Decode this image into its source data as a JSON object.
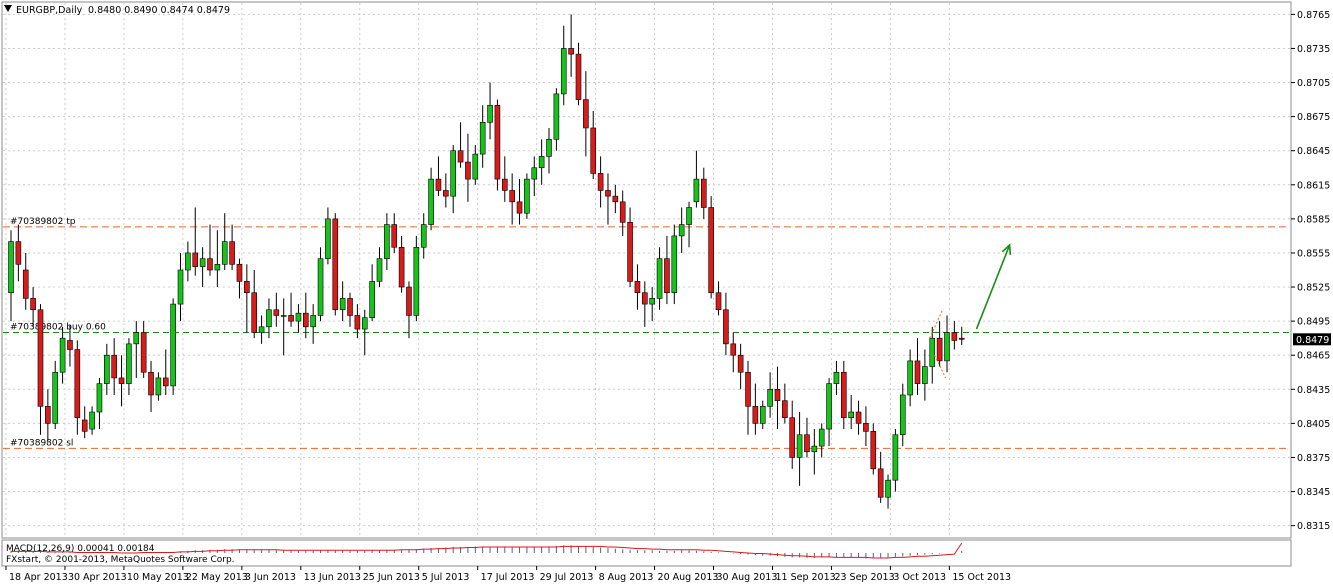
{
  "header": {
    "symbol_text": "EURGBP,Daily",
    "ohlc_text": "0.8480 0.8490 0.8474 0.8479"
  },
  "indicator": {
    "label": "MACD(12,26,9) 0.00041 0.00184"
  },
  "footer": {
    "copyright": "FXstart, © 2001-2013, MetaQuotes Software Corp."
  },
  "colors": {
    "bull": "#17c31a",
    "bear": "#d81b1b",
    "wick": "#000000",
    "level_red": "#f0642a",
    "level_green": "#1a8c1a",
    "arrow": "#1a8c1a",
    "grid": "#c8ccd2",
    "price_tag_bg": "#000000",
    "price_tag_fg": "#ffffff"
  },
  "chart_data": {
    "type": "candlestick",
    "symbol": "EURGBP",
    "timeframe": "Daily",
    "ylim": [
      0.8305,
      0.8775
    ],
    "y_ticks": [
      "0.8765",
      "0.8735",
      "0.8705",
      "0.8675",
      "0.8645",
      "0.8615",
      "0.8585",
      "0.8555",
      "0.8525",
      "0.8495",
      "0.8465",
      "0.8435",
      "0.8405",
      "0.8375",
      "0.8345",
      "0.8315"
    ],
    "current_price": "0.8479",
    "x_tick_labels": [
      {
        "label": "18 Apr 2013",
        "bar": 0
      },
      {
        "label": "30 Apr 2013",
        "bar": 8
      },
      {
        "label": "10 May 2013",
        "bar": 16
      },
      {
        "label": "22 May 2013",
        "bar": 24
      },
      {
        "label": "3 Jun 2013",
        "bar": 32
      },
      {
        "label": "13 Jun 2013",
        "bar": 40
      },
      {
        "label": "25 Jun 2013",
        "bar": 48
      },
      {
        "label": "5 Jul 2013",
        "bar": 56
      },
      {
        "label": "17 Jul 2013",
        "bar": 64
      },
      {
        "label": "29 Jul 2013",
        "bar": 72
      },
      {
        "label": "8 Aug 2013",
        "bar": 80
      },
      {
        "label": "20 Aug 2013",
        "bar": 88
      },
      {
        "label": "30 Aug 2013",
        "bar": 96
      },
      {
        "label": "11 Sep 2013",
        "bar": 104
      },
      {
        "label": "23 Sep 2013",
        "bar": 112
      },
      {
        "label": "3 Oct 2013",
        "bar": 120
      },
      {
        "label": "15 Oct 2013",
        "bar": 128
      }
    ],
    "levels": [
      {
        "label": "#70389802 tp",
        "price": 0.8578,
        "style": "tp"
      },
      {
        "label": "#70389802 buy 0.60",
        "price": 0.8485,
        "style": "buy"
      },
      {
        "label": "#70389802 sl",
        "price": 0.8383,
        "style": "sl"
      }
    ],
    "arrow": {
      "from": {
        "bar": 131,
        "price": 0.8488
      },
      "to": {
        "bar": 135.5,
        "price": 0.8562
      }
    },
    "ohlc": [
      [
        0.852,
        0.8575,
        0.8495,
        0.8565
      ],
      [
        0.8565,
        0.858,
        0.853,
        0.8545
      ],
      [
        0.854,
        0.8555,
        0.8505,
        0.8515
      ],
      [
        0.8515,
        0.8525,
        0.849,
        0.8505
      ],
      [
        0.8505,
        0.851,
        0.8395,
        0.842
      ],
      [
        0.842,
        0.8435,
        0.839,
        0.8405
      ],
      [
        0.8405,
        0.846,
        0.84,
        0.845
      ],
      [
        0.845,
        0.849,
        0.844,
        0.848
      ],
      [
        0.8478,
        0.8492,
        0.8455,
        0.847
      ],
      [
        0.847,
        0.8478,
        0.8395,
        0.841
      ],
      [
        0.8408,
        0.842,
        0.8392,
        0.8398
      ],
      [
        0.84,
        0.842,
        0.8395,
        0.8415
      ],
      [
        0.8415,
        0.8445,
        0.84,
        0.844
      ],
      [
        0.844,
        0.8475,
        0.843,
        0.8465
      ],
      [
        0.8465,
        0.848,
        0.843,
        0.8445
      ],
      [
        0.8445,
        0.8465,
        0.842,
        0.844
      ],
      [
        0.844,
        0.848,
        0.843,
        0.8475
      ],
      [
        0.8475,
        0.8495,
        0.8445,
        0.8485
      ],
      [
        0.8485,
        0.8495,
        0.8445,
        0.845
      ],
      [
        0.845,
        0.846,
        0.8415,
        0.843
      ],
      [
        0.843,
        0.845,
        0.8425,
        0.8445
      ],
      [
        0.8445,
        0.847,
        0.843,
        0.8438
      ],
      [
        0.8438,
        0.8515,
        0.843,
        0.851
      ],
      [
        0.851,
        0.8555,
        0.8495,
        0.854
      ],
      [
        0.854,
        0.8565,
        0.853,
        0.8555
      ],
      [
        0.8555,
        0.8595,
        0.8535,
        0.8543
      ],
      [
        0.8543,
        0.856,
        0.8525,
        0.855
      ],
      [
        0.855,
        0.858,
        0.8535,
        0.854
      ],
      [
        0.854,
        0.8575,
        0.8525,
        0.8545
      ],
      [
        0.8545,
        0.859,
        0.854,
        0.8565
      ],
      [
        0.8565,
        0.858,
        0.854,
        0.8545
      ],
      [
        0.8545,
        0.855,
        0.8515,
        0.853
      ],
      [
        0.853,
        0.8545,
        0.8485,
        0.852
      ],
      [
        0.852,
        0.854,
        0.848,
        0.8485
      ],
      [
        0.8485,
        0.85,
        0.8475,
        0.849
      ],
      [
        0.849,
        0.8515,
        0.848,
        0.8505
      ],
      [
        0.8505,
        0.852,
        0.849,
        0.85
      ],
      [
        0.85,
        0.8515,
        0.8465,
        0.85
      ],
      [
        0.85,
        0.852,
        0.849,
        0.8495
      ],
      [
        0.8495,
        0.851,
        0.8485,
        0.8502
      ],
      [
        0.8502,
        0.852,
        0.848,
        0.849
      ],
      [
        0.849,
        0.851,
        0.8475,
        0.85
      ],
      [
        0.85,
        0.856,
        0.8495,
        0.855
      ],
      [
        0.855,
        0.8595,
        0.8545,
        0.8585
      ],
      [
        0.8585,
        0.859,
        0.85,
        0.8505
      ],
      [
        0.8505,
        0.853,
        0.8495,
        0.8515
      ],
      [
        0.8515,
        0.852,
        0.849,
        0.85
      ],
      [
        0.85,
        0.851,
        0.848,
        0.8488
      ],
      [
        0.8488,
        0.8505,
        0.8465,
        0.8498
      ],
      [
        0.8498,
        0.8545,
        0.8495,
        0.853
      ],
      [
        0.853,
        0.856,
        0.8525,
        0.855
      ],
      [
        0.855,
        0.859,
        0.854,
        0.858
      ],
      [
        0.858,
        0.859,
        0.8555,
        0.856
      ],
      [
        0.856,
        0.857,
        0.852,
        0.8525
      ],
      [
        0.8525,
        0.853,
        0.848,
        0.85
      ],
      [
        0.85,
        0.857,
        0.8495,
        0.856
      ],
      [
        0.856,
        0.859,
        0.855,
        0.858
      ],
      [
        0.858,
        0.863,
        0.8575,
        0.862
      ],
      [
        0.862,
        0.864,
        0.8605,
        0.861
      ],
      [
        0.861,
        0.8625,
        0.8595,
        0.8605
      ],
      [
        0.8605,
        0.865,
        0.859,
        0.8645
      ],
      [
        0.8645,
        0.867,
        0.863,
        0.8635
      ],
      [
        0.8635,
        0.866,
        0.86,
        0.862
      ],
      [
        0.862,
        0.865,
        0.8615,
        0.8642
      ],
      [
        0.8642,
        0.8685,
        0.863,
        0.867
      ],
      [
        0.867,
        0.8705,
        0.8655,
        0.8685
      ],
      [
        0.8685,
        0.869,
        0.861,
        0.862
      ],
      [
        0.862,
        0.864,
        0.86,
        0.861
      ],
      [
        0.861,
        0.8625,
        0.858,
        0.86
      ],
      [
        0.86,
        0.862,
        0.858,
        0.859
      ],
      [
        0.859,
        0.8625,
        0.8585,
        0.862
      ],
      [
        0.862,
        0.864,
        0.8605,
        0.863
      ],
      [
        0.863,
        0.8655,
        0.8615,
        0.864
      ],
      [
        0.864,
        0.8665,
        0.8625,
        0.8655
      ],
      [
        0.8655,
        0.87,
        0.8645,
        0.8695
      ],
      [
        0.8695,
        0.8755,
        0.8685,
        0.8735
      ],
      [
        0.8735,
        0.8765,
        0.871,
        0.873
      ],
      [
        0.873,
        0.874,
        0.8685,
        0.869
      ],
      [
        0.869,
        0.8715,
        0.864,
        0.8665
      ],
      [
        0.8665,
        0.868,
        0.862,
        0.8625
      ],
      [
        0.8625,
        0.864,
        0.8595,
        0.861
      ],
      [
        0.861,
        0.8625,
        0.858,
        0.8605
      ],
      [
        0.8605,
        0.8615,
        0.859,
        0.86
      ],
      [
        0.86,
        0.861,
        0.857,
        0.8582
      ],
      [
        0.8582,
        0.8595,
        0.8525,
        0.853
      ],
      [
        0.853,
        0.8545,
        0.8505,
        0.852
      ],
      [
        0.852,
        0.853,
        0.849,
        0.851
      ],
      [
        0.851,
        0.8525,
        0.8495,
        0.8515
      ],
      [
        0.8515,
        0.856,
        0.8505,
        0.855
      ],
      [
        0.855,
        0.857,
        0.851,
        0.852
      ],
      [
        0.852,
        0.858,
        0.851,
        0.857
      ],
      [
        0.857,
        0.8595,
        0.8555,
        0.858
      ],
      [
        0.858,
        0.86,
        0.856,
        0.8595
      ],
      [
        0.86,
        0.8645,
        0.8595,
        0.862
      ],
      [
        0.862,
        0.863,
        0.8585,
        0.8595
      ],
      [
        0.8595,
        0.8605,
        0.8515,
        0.852
      ],
      [
        0.852,
        0.853,
        0.85,
        0.8505
      ],
      [
        0.8505,
        0.852,
        0.8465,
        0.8475
      ],
      [
        0.8475,
        0.8485,
        0.845,
        0.8465
      ],
      [
        0.8465,
        0.8475,
        0.8435,
        0.845
      ],
      [
        0.845,
        0.846,
        0.8395,
        0.842
      ],
      [
        0.842,
        0.844,
        0.8395,
        0.8405
      ],
      [
        0.8405,
        0.8425,
        0.84,
        0.842
      ],
      [
        0.842,
        0.845,
        0.841,
        0.8435
      ],
      [
        0.8435,
        0.8455,
        0.84,
        0.8425
      ],
      [
        0.8425,
        0.844,
        0.8405,
        0.841
      ],
      [
        0.841,
        0.8425,
        0.8365,
        0.8375
      ],
      [
        0.8375,
        0.8415,
        0.835,
        0.8395
      ],
      [
        0.8395,
        0.841,
        0.8375,
        0.838
      ],
      [
        0.838,
        0.84,
        0.836,
        0.8385
      ],
      [
        0.8385,
        0.8405,
        0.8375,
        0.84
      ],
      [
        0.84,
        0.8445,
        0.8385,
        0.844
      ],
      [
        0.844,
        0.846,
        0.843,
        0.845
      ],
      [
        0.845,
        0.846,
        0.84,
        0.841
      ],
      [
        0.841,
        0.843,
        0.84,
        0.8415
      ],
      [
        0.8415,
        0.8425,
        0.8395,
        0.8405
      ],
      [
        0.8405,
        0.842,
        0.8385,
        0.8398
      ],
      [
        0.8398,
        0.8405,
        0.836,
        0.8365
      ],
      [
        0.8365,
        0.838,
        0.8335,
        0.834
      ],
      [
        0.834,
        0.836,
        0.833,
        0.8355
      ],
      [
        0.8355,
        0.84,
        0.8345,
        0.8395
      ],
      [
        0.8395,
        0.844,
        0.8385,
        0.843
      ],
      [
        0.843,
        0.847,
        0.842,
        0.846
      ],
      [
        0.846,
        0.848,
        0.843,
        0.844
      ],
      [
        0.844,
        0.847,
        0.8425,
        0.8455
      ],
      [
        0.8455,
        0.849,
        0.844,
        0.848
      ],
      [
        0.848,
        0.8495,
        0.8455,
        0.846
      ],
      [
        0.846,
        0.85,
        0.845,
        0.8485
      ],
      [
        0.8485,
        0.8495,
        0.847,
        0.8478
      ],
      [
        0.848,
        0.849,
        0.8474,
        0.8479
      ]
    ],
    "macd": {
      "label": "MACD(12,26,9) 0.00041 0.00184",
      "main_values": [
        0.0004,
        0.0004,
        0.0004,
        0.0003,
        0.0002,
        0.0001,
        0.0001,
        0.0001,
        0.0001,
        0.0001,
        0.0,
        0.0,
        0.0,
        0.0,
        0.0,
        0.0,
        0.0001,
        0.0001,
        0.0001,
        0.0001,
        0.0001,
        0.0001,
        0.0002,
        0.0003,
        0.0004,
        0.0005,
        0.0005,
        0.0006,
        0.0006,
        0.0007,
        0.0007,
        0.0007,
        0.0006,
        0.0006,
        0.0006,
        0.0006,
        0.0005,
        0.0005,
        0.0005,
        0.0004,
        0.0004,
        0.0004,
        0.0005,
        0.0005,
        0.0005,
        0.0005,
        0.0004,
        0.0004,
        0.0004,
        0.0005,
        0.0005,
        0.0006,
        0.0006,
        0.0006,
        0.0006,
        0.0007,
        0.0008,
        0.0009,
        0.0009,
        0.001,
        0.0011,
        0.0011,
        0.0011,
        0.0012,
        0.0012,
        0.0011,
        0.0011,
        0.0011,
        0.001,
        0.001,
        0.001,
        0.001,
        0.0011,
        0.0012,
        0.0013,
        0.0014,
        0.0014,
        0.0013,
        0.0012,
        0.0011,
        0.001,
        0.0009,
        0.0008,
        0.0007,
        0.0006,
        0.0005,
        0.0005,
        0.0005,
        0.0004,
        0.0004,
        0.0004,
        0.0005,
        0.0005,
        0.0004,
        0.0003,
        0.0002,
        0.0001,
        0.0,
        -0.0001,
        -0.0002,
        -0.0003,
        -0.0004,
        -0.0005,
        -0.0005,
        -0.0006,
        -0.0007,
        -0.0008,
        -0.0008,
        -0.0009,
        -0.0009,
        -0.0008,
        -0.0008,
        -0.0008,
        -0.0008,
        -0.0008,
        -0.0009,
        -0.001,
        -0.001,
        -0.0009,
        -0.0008,
        -0.0007,
        -0.0006,
        -0.0005,
        -0.0004,
        -0.0003,
        -0.0002,
        -0.0001,
        0.0,
        0.0,
        0.0004
      ],
      "signal_values": [
        0.0003,
        0.0003,
        0.0003,
        0.0003,
        0.0003,
        0.0002,
        0.0002,
        0.0002,
        0.0002,
        0.0001,
        0.0001,
        0.0001,
        0.0001,
        0.0001,
        0.0001,
        0.0,
        0.0,
        0.0,
        0.0001,
        0.0001,
        0.0001,
        0.0001,
        0.0001,
        0.0002,
        0.0002,
        0.0003,
        0.0003,
        0.0004,
        0.0004,
        0.0005,
        0.0005,
        0.0006,
        0.0006,
        0.0006,
        0.0006,
        0.0006,
        0.0006,
        0.0005,
        0.0005,
        0.0005,
        0.0005,
        0.0005,
        0.0005,
        0.0005,
        0.0005,
        0.0005,
        0.0005,
        0.0005,
        0.0005,
        0.0005,
        0.0005,
        0.0005,
        0.0005,
        0.0006,
        0.0006,
        0.0006,
        0.0007,
        0.0007,
        0.0008,
        0.0008,
        0.0009,
        0.0009,
        0.001,
        0.001,
        0.0011,
        0.0011,
        0.0011,
        0.0011,
        0.0011,
        0.0011,
        0.0011,
        0.0011,
        0.0011,
        0.0011,
        0.0011,
        0.0012,
        0.0012,
        0.0012,
        0.0012,
        0.0012,
        0.0012,
        0.0011,
        0.0011,
        0.001,
        0.0009,
        0.0008,
        0.0008,
        0.0007,
        0.0007,
        0.0006,
        0.0006,
        0.0006,
        0.0006,
        0.0006,
        0.0005,
        0.0005,
        0.0004,
        0.0003,
        0.0002,
        0.0001,
        0.0,
        -0.0001,
        -0.0001,
        -0.0002,
        -0.0003,
        -0.0004,
        -0.0005,
        -0.0005,
        -0.0006,
        -0.0007,
        -0.0007,
        -0.0007,
        -0.0008,
        -0.0008,
        -0.0008,
        -0.0008,
        -0.0008,
        -0.0009,
        -0.0009,
        -0.0009,
        -0.0008,
        -0.0008,
        -0.0007,
        -0.0006,
        -0.0006,
        -0.0005,
        -0.0004,
        -0.0003,
        -0.0002,
        0.0018
      ]
    }
  }
}
